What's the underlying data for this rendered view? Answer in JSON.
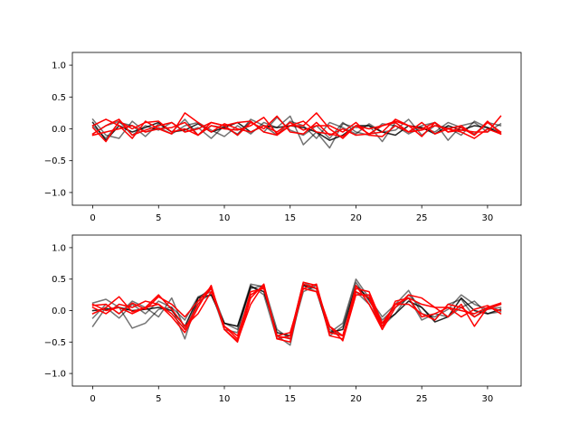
{
  "chart_data": [
    {
      "type": "line",
      "title": "",
      "xlabel": "",
      "ylabel": "",
      "xlim": [
        -1.55,
        32.55
      ],
      "ylim": [
        -1.2,
        1.2
      ],
      "xticks": [
        0,
        5,
        10,
        15,
        20,
        25,
        30
      ],
      "yticks": [
        -1.0,
        -0.5,
        0.0,
        0.5,
        1.0
      ],
      "xtick_labels": [
        "0",
        "5",
        "10",
        "15",
        "20",
        "25",
        "30"
      ],
      "ytick_labels": [
        "−1.0",
        "−0.5",
        "0.0",
        "0.5",
        "1.0"
      ],
      "grid": false,
      "x": [
        0,
        1,
        2,
        3,
        4,
        5,
        6,
        7,
        8,
        9,
        10,
        11,
        12,
        13,
        14,
        15,
        16,
        17,
        18,
        19,
        20,
        21,
        22,
        23,
        24,
        25,
        26,
        27,
        28,
        29,
        30,
        31
      ],
      "series": [
        {
          "color": "#000000",
          "opacity": 0.55,
          "values": [
            0.15,
            -0.1,
            -0.15,
            0.12,
            -0.05,
            0.02,
            -0.08,
            0.05,
            0.1,
            -0.02,
            -0.12,
            0.05,
            -0.08,
            0.1,
            0.02,
            0.2,
            -0.25,
            -0.05,
            -0.3,
            0.08,
            0.02,
            0.05,
            -0.2,
            0.1,
            -0.05,
            0.05,
            0.1,
            -0.18,
            0.05,
            0.1,
            -0.05,
            0.08
          ]
        },
        {
          "color": "#000000",
          "opacity": 0.55,
          "values": [
            -0.08,
            0.05,
            0.12,
            -0.1,
            0.05,
            -0.02,
            0.1,
            -0.05,
            0.02,
            -0.15,
            0.05,
            -0.1,
            0.15,
            0.05,
            -0.1,
            0.12,
            0.05,
            -0.15,
            0.1,
            0.02,
            -0.08,
            0.08,
            -0.05,
            -0.02,
            0.15,
            -0.1,
            0.05,
            0.02,
            -0.1,
            0.12,
            0.02,
            -0.05
          ]
        },
        {
          "color": "#000000",
          "opacity": 0.55,
          "values": [
            0.05,
            -0.15,
            0.1,
            0.05,
            -0.12,
            0.08,
            -0.05,
            0.15,
            -0.1,
            0.05,
            0.02,
            -0.08,
            0.12,
            -0.05,
            0.18,
            -0.02,
            -0.1,
            0.05,
            -0.15,
            0.1,
            -0.05,
            -0.1,
            0.08,
            0.05,
            -0.08,
            0.02,
            -0.05,
            0.1,
            0.02,
            -0.08,
            0.1,
            0.05
          ]
        },
        {
          "color": "#000000",
          "opacity": 0.85,
          "values": [
            0.1,
            -0.18,
            0.05,
            -0.05,
            0.02,
            0.1,
            -0.05,
            -0.02,
            0.08,
            -0.05,
            0.02,
            0.1,
            -0.05,
            0.05,
            0.02,
            0.05,
            0.02,
            -0.05,
            -0.18,
            -0.1,
            0.05,
            0.05,
            -0.05,
            -0.1,
            0.05,
            0.02,
            -0.08,
            0.05,
            -0.02,
            0.05,
            0.02,
            -0.08
          ]
        },
        {
          "color": "#ff0000",
          "opacity": 1.0,
          "values": [
            0.02,
            -0.2,
            0.12,
            0.0,
            0.1,
            0.12,
            -0.05,
            0.0,
            -0.1,
            0.05,
            0.0,
            -0.02,
            0.05,
            0.18,
            -0.08,
            0.05,
            0.05,
            0.25,
            0.0,
            -0.15,
            0.05,
            -0.08,
            -0.05,
            0.15,
            0.05,
            0.0,
            0.1,
            -0.05,
            0.02,
            -0.1,
            0.1,
            -0.05
          ]
        },
        {
          "color": "#ff0000",
          "opacity": 1.0,
          "values": [
            -0.08,
            0.05,
            0.15,
            -0.1,
            -0.02,
            0.05,
            0.1,
            -0.05,
            0.0,
            0.1,
            0.05,
            -0.1,
            0.1,
            0.0,
            0.2,
            -0.05,
            -0.08,
            0.1,
            -0.1,
            0.0,
            -0.1,
            -0.08,
            0.05,
            0.1,
            -0.05,
            0.1,
            -0.08,
            0.0,
            0.05,
            -0.1,
            0.12,
            -0.08
          ]
        },
        {
          "color": "#ff0000",
          "opacity": 1.0,
          "values": [
            0.05,
            0.15,
            0.05,
            -0.15,
            0.12,
            0.0,
            -0.08,
            0.25,
            0.1,
            -0.05,
            0.08,
            0.0,
            -0.05,
            0.05,
            -0.05,
            0.1,
            -0.02,
            0.05,
            0.05,
            -0.05,
            0.1,
            -0.1,
            -0.12,
            0.05,
            -0.05,
            -0.02,
            0.05,
            0.0,
            -0.05,
            -0.15,
            0.0,
            -0.08
          ]
        },
        {
          "color": "#ff0000",
          "opacity": 1.0,
          "values": [
            -0.1,
            -0.05,
            0.0,
            0.05,
            -0.05,
            0.0,
            0.02,
            0.1,
            -0.1,
            0.1,
            0.05,
            0.1,
            0.12,
            -0.05,
            -0.1,
            0.05,
            0.12,
            -0.05,
            -0.08,
            -0.12,
            0.05,
            0.0,
            0.05,
            0.12,
            0.05,
            -0.12,
            0.1,
            -0.05,
            -0.02,
            -0.05,
            -0.05,
            0.2
          ]
        }
      ]
    },
    {
      "type": "line",
      "title": "",
      "xlabel": "",
      "ylabel": "",
      "xlim": [
        -1.55,
        32.55
      ],
      "ylim": [
        -1.2,
        1.2
      ],
      "xticks": [
        0,
        5,
        10,
        15,
        20,
        25,
        30
      ],
      "yticks": [
        -1.0,
        -0.5,
        0.0,
        0.5,
        1.0
      ],
      "xtick_labels": [
        "0",
        "5",
        "10",
        "15",
        "20",
        "25",
        "30"
      ],
      "ytick_labels": [
        "−1.0",
        "−0.5",
        "0.0",
        "0.5",
        "1.0"
      ],
      "grid": false,
      "x": [
        0,
        1,
        2,
        3,
        4,
        5,
        6,
        7,
        8,
        9,
        10,
        11,
        12,
        13,
        14,
        15,
        16,
        17,
        18,
        19,
        20,
        21,
        22,
        23,
        24,
        25,
        26,
        27,
        28,
        29,
        30,
        31
      ],
      "series": [
        {
          "color": "#000000",
          "opacity": 0.55,
          "values": [
            -0.25,
            0.05,
            -0.12,
            0.1,
            -0.05,
            0.15,
            0.05,
            -0.45,
            0.2,
            0.35,
            -0.2,
            -0.25,
            0.42,
            0.38,
            -0.4,
            -0.55,
            0.4,
            0.3,
            -0.35,
            -0.2,
            0.5,
            0.2,
            -0.1,
            0.1,
            0.32,
            -0.05,
            -0.1,
            0.02,
            0.25,
            0.1,
            0.02,
            0.05
          ]
        },
        {
          "color": "#000000",
          "opacity": 0.55,
          "values": [
            0.12,
            0.18,
            0.05,
            -0.28,
            -0.2,
            0.02,
            0.05,
            -0.15,
            0.22,
            0.3,
            -0.3,
            -0.35,
            0.4,
            0.25,
            -0.45,
            -0.4,
            0.45,
            0.35,
            -0.4,
            -0.25,
            0.45,
            0.15,
            -0.15,
            0.05,
            0.2,
            -0.15,
            -0.05,
            -0.1,
            0.05,
            0.15,
            -0.05,
            -0.02
          ]
        },
        {
          "color": "#000000",
          "opacity": 0.55,
          "values": [
            -0.12,
            0.1,
            -0.05,
            0.15,
            0.05,
            -0.1,
            0.2,
            -0.3,
            0.15,
            0.25,
            -0.2,
            -0.3,
            0.35,
            0.4,
            -0.3,
            -0.45,
            0.3,
            0.4,
            -0.3,
            -0.4,
            0.3,
            0.1,
            -0.25,
            -0.05,
            0.25,
            0.05,
            -0.15,
            0.1,
            0.18,
            -0.1,
            0.05,
            0.1
          ]
        },
        {
          "color": "#000000",
          "opacity": 0.85,
          "values": [
            0.0,
            0.02,
            0.05,
            0.0,
            0.02,
            0.05,
            0.0,
            -0.25,
            0.2,
            0.25,
            -0.2,
            -0.25,
            0.38,
            0.3,
            -0.35,
            -0.4,
            0.4,
            0.35,
            -0.35,
            -0.3,
            0.4,
            0.18,
            -0.2,
            -0.05,
            0.15,
            0.05,
            -0.18,
            -0.1,
            0.2,
            0.0,
            -0.05,
            0.02
          ]
        },
        {
          "color": "#ff0000",
          "opacity": 1.0,
          "values": [
            0.05,
            -0.05,
            0.1,
            0.05,
            0.15,
            0.1,
            -0.1,
            -0.35,
            0.05,
            0.4,
            -0.3,
            -0.48,
            0.1,
            0.42,
            -0.45,
            -0.4,
            0.45,
            0.4,
            -0.4,
            -0.45,
            0.4,
            0.1,
            -0.3,
            0.05,
            0.25,
            0.2,
            0.05,
            0.05,
            0.0,
            -0.05,
            0.05,
            0.12
          ]
        },
        {
          "color": "#ff0000",
          "opacity": 1.0,
          "values": [
            -0.05,
            0.05,
            0.22,
            -0.02,
            0.05,
            0.1,
            -0.05,
            -0.3,
            0.1,
            0.35,
            -0.25,
            -0.45,
            0.3,
            0.35,
            -0.4,
            -0.45,
            0.35,
            0.3,
            -0.25,
            -0.48,
            0.25,
            0.25,
            -0.25,
            0.1,
            0.1,
            -0.05,
            -0.15,
            0.1,
            0.05,
            -0.1,
            0.02,
            0.1
          ]
        },
        {
          "color": "#ff0000",
          "opacity": 1.0,
          "values": [
            0.08,
            0.1,
            -0.05,
            0.12,
            0.02,
            0.22,
            0.1,
            -0.1,
            0.15,
            0.38,
            -0.3,
            -0.5,
            0.2,
            0.42,
            -0.45,
            -0.5,
            0.42,
            0.35,
            -0.25,
            -0.4,
            0.3,
            0.2,
            -0.3,
            0.15,
            0.2,
            -0.1,
            -0.05,
            0.05,
            -0.1,
            0.02,
            0.08,
            -0.05
          ]
        },
        {
          "color": "#ff0000",
          "opacity": 1.0,
          "values": [
            0.1,
            0.0,
            0.05,
            -0.05,
            0.05,
            0.25,
            0.02,
            -0.25,
            -0.05,
            0.3,
            -0.25,
            -0.4,
            0.25,
            0.38,
            -0.4,
            -0.35,
            0.35,
            0.42,
            -0.35,
            -0.4,
            0.35,
            0.3,
            -0.2,
            0.1,
            0.2,
            0.1,
            0.05,
            -0.1,
            0.1,
            -0.25,
            0.05,
            0.0
          ]
        }
      ]
    }
  ]
}
